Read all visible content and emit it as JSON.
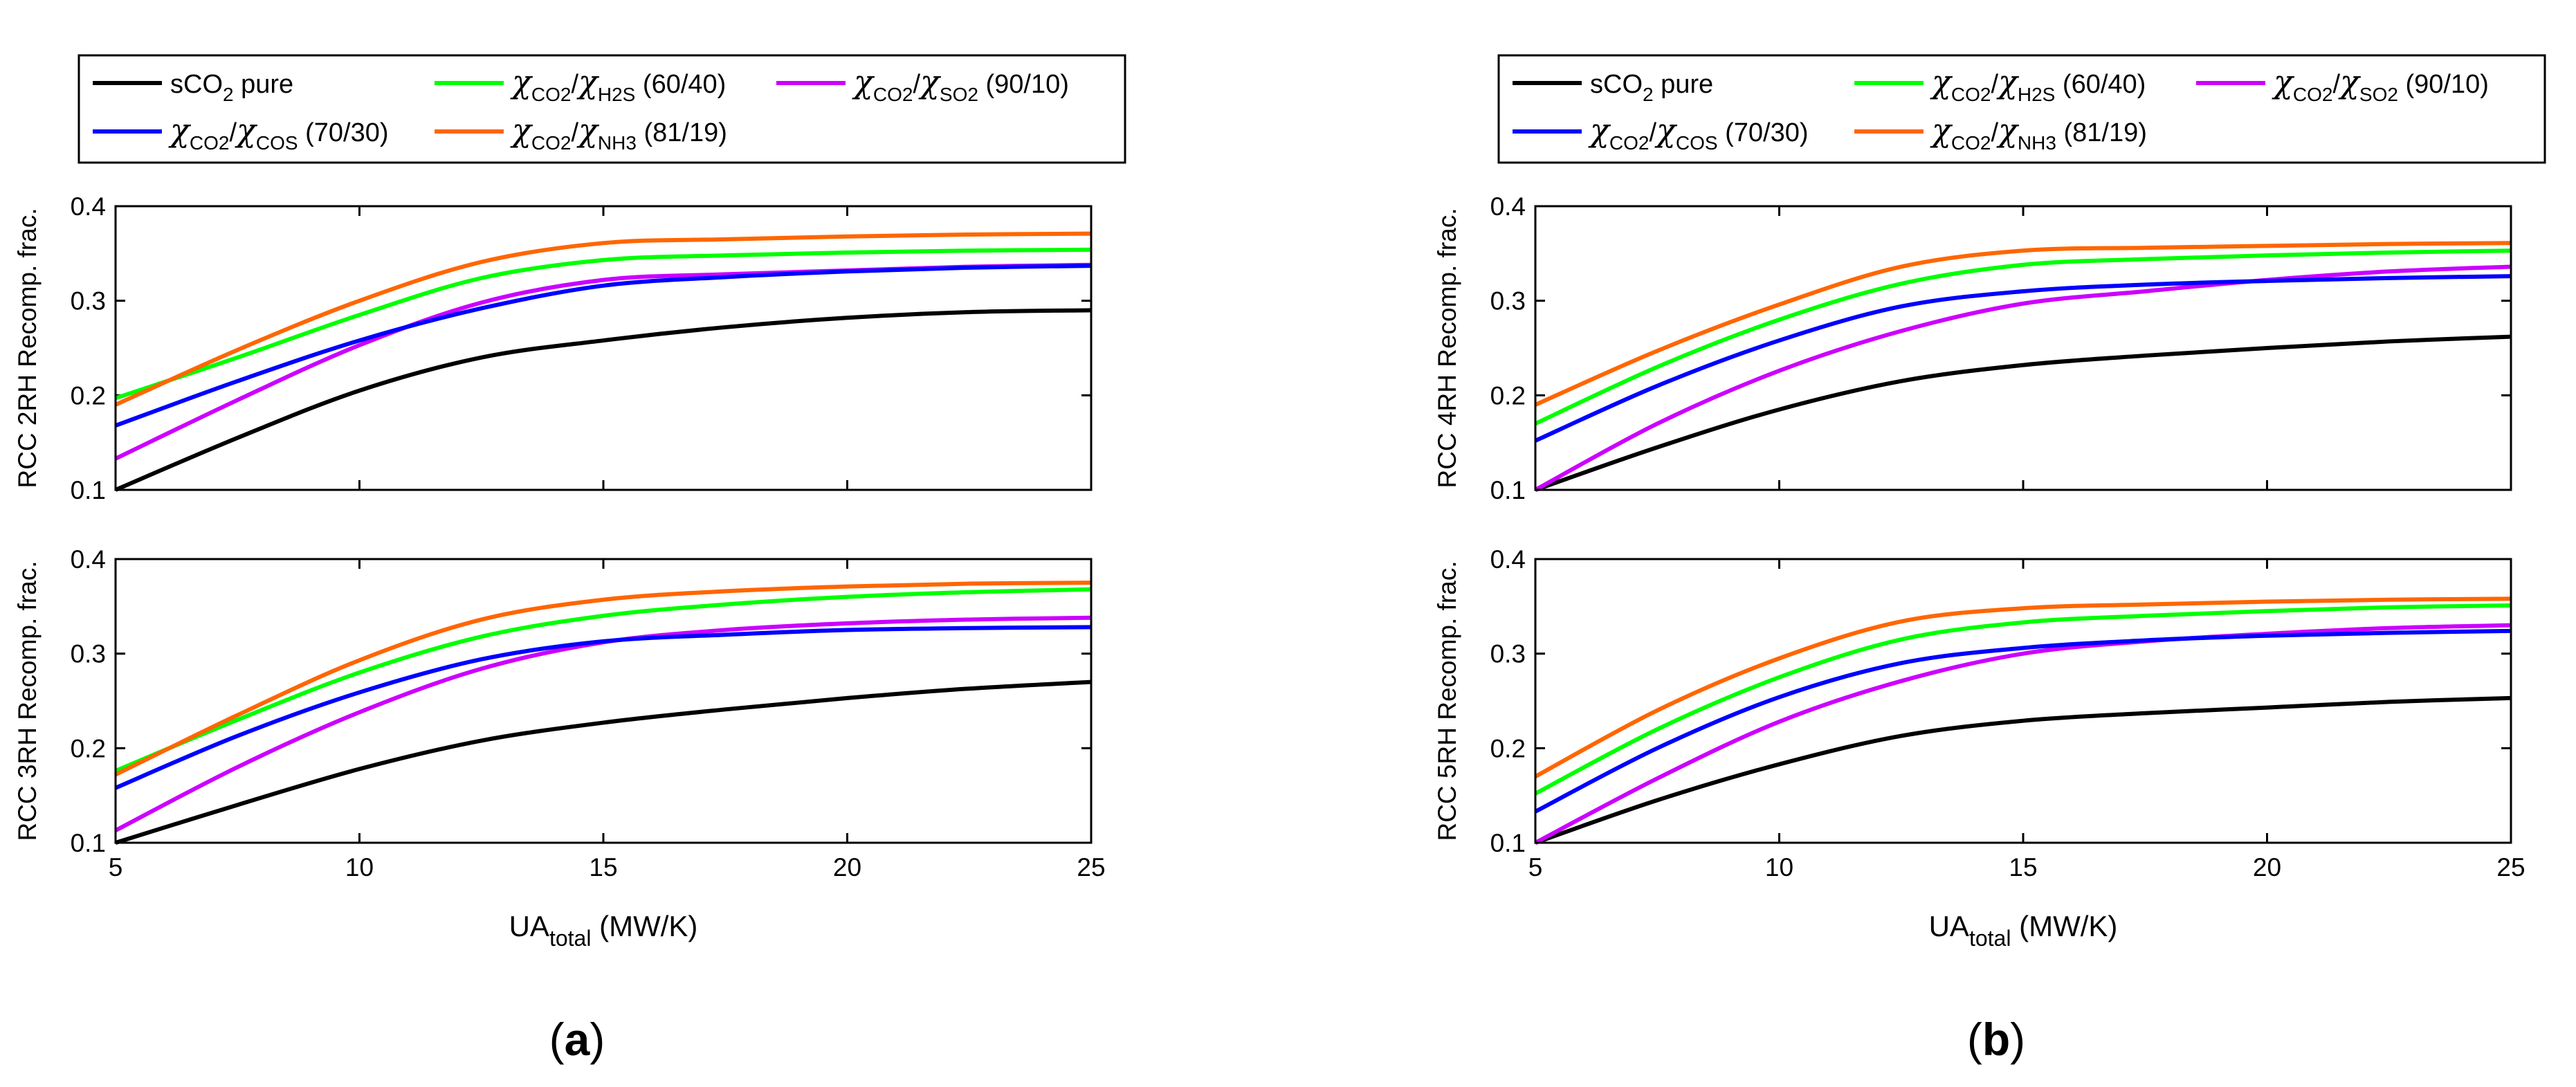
{
  "legend": [
    {
      "main": "sCO",
      "sub": "2",
      "tail": " pure",
      "color": "#000000",
      "kind": "plain"
    },
    {
      "chi": "χ",
      "s1": "CO2",
      "slash": "/",
      "chi2": "χ",
      "s2": "H2S",
      "ratio": " (60/40)",
      "color": "#00ff00",
      "kind": "chi"
    },
    {
      "chi": "χ",
      "s1": "CO2",
      "slash": "/",
      "chi2": "χ",
      "s2": "SO2",
      "ratio": " (90/10)",
      "color": "#cc00ff",
      "kind": "chi"
    },
    {
      "chi": "χ",
      "s1": "CO2",
      "slash": "/",
      "chi2": "χ",
      "s2": "COS",
      "ratio": " (70/30)",
      "color": "#0000ff",
      "kind": "chi"
    },
    {
      "chi": "χ",
      "s1": "CO2",
      "slash": "/",
      "chi2": "χ",
      "s2": "NH3",
      "ratio": " (81/19)",
      "color": "#ff6600",
      "kind": "chi"
    }
  ],
  "xlabel": {
    "main": "UA",
    "sub": "total",
    "tail": " (MW/K)"
  },
  "captions": [
    "(",
    "a",
    ")",
    "b"
  ],
  "chart_data": [
    {
      "type": "line",
      "panel": "a",
      "title": "",
      "ylabel": "RCC 2RH Recomp. frac.",
      "xlim": [
        5,
        25
      ],
      "ylim": [
        0.1,
        0.4
      ],
      "xticks": [
        "5",
        "10",
        "15",
        "20",
        "25"
      ],
      "yticks": [
        "0.1",
        "0.2",
        "0.3",
        "0.4"
      ],
      "x": [
        5,
        7.5,
        10,
        12.5,
        15,
        17.5,
        20,
        22.5,
        25
      ],
      "series": [
        {
          "name": "sCO2 pure",
          "color": "#000000",
          "values": [
            0.1,
            0.155,
            0.205,
            0.24,
            0.258,
            0.272,
            0.282,
            0.288,
            0.29
          ]
        },
        {
          "name": "χCO2/χH2S (60/40)",
          "color": "#00ff00",
          "values": [
            0.197,
            0.24,
            0.285,
            0.324,
            0.343,
            0.348,
            0.351,
            0.353,
            0.354
          ]
        },
        {
          "name": "χCO2/χSO2 (90/10)",
          "color": "#cc00ff",
          "values": [
            0.133,
            0.195,
            0.253,
            0.298,
            0.322,
            0.328,
            0.332,
            0.336,
            0.338
          ]
        },
        {
          "name": "χCO2/χCOS (70/30)",
          "color": "#0000ff",
          "values": [
            0.168,
            0.215,
            0.258,
            0.292,
            0.316,
            0.325,
            0.331,
            0.335,
            0.337
          ]
        },
        {
          "name": "χCO2/χNH3 (81/19)",
          "color": "#ff6600",
          "values": [
            0.19,
            0.248,
            0.3,
            0.341,
            0.361,
            0.365,
            0.368,
            0.37,
            0.371
          ]
        }
      ]
    },
    {
      "type": "line",
      "panel": "a",
      "title": "",
      "ylabel": "RCC 3RH Recomp. frac.",
      "xlim": [
        5,
        25
      ],
      "ylim": [
        0.1,
        0.4
      ],
      "xticks": [
        "5",
        "10",
        "15",
        "20",
        "25"
      ],
      "yticks": [
        "0.1",
        "0.2",
        "0.3",
        "0.4"
      ],
      "x": [
        5,
        7.5,
        10,
        12.5,
        15,
        17.5,
        20,
        22.5,
        25
      ],
      "series": [
        {
          "name": "sCO2 pure",
          "color": "#000000",
          "values": [
            0.1,
            0.14,
            0.178,
            0.208,
            0.227,
            0.241,
            0.253,
            0.263,
            0.27
          ]
        },
        {
          "name": "χCO2/χH2S (60/40)",
          "color": "#00ff00",
          "values": [
            0.176,
            0.23,
            0.28,
            0.318,
            0.34,
            0.352,
            0.36,
            0.365,
            0.368
          ]
        },
        {
          "name": "χCO2/χSO2 (90/10)",
          "color": "#cc00ff",
          "values": [
            0.113,
            0.18,
            0.238,
            0.284,
            0.312,
            0.325,
            0.332,
            0.336,
            0.338
          ]
        },
        {
          "name": "χCO2/χCOS (70/30)",
          "color": "#0000ff",
          "values": [
            0.158,
            0.213,
            0.259,
            0.294,
            0.313,
            0.32,
            0.325,
            0.327,
            0.328
          ]
        },
        {
          "name": "χCO2/χNH3 (81/19)",
          "color": "#ff6600",
          "values": [
            0.172,
            0.235,
            0.293,
            0.336,
            0.357,
            0.366,
            0.371,
            0.374,
            0.375
          ]
        }
      ]
    },
    {
      "type": "line",
      "panel": "b",
      "title": "",
      "ylabel": "RCC 4RH Recomp. frac.",
      "xlim": [
        5,
        25
      ],
      "ylim": [
        0.1,
        0.4
      ],
      "xticks": [
        "5",
        "10",
        "15",
        "20",
        "25"
      ],
      "yticks": [
        "0.1",
        "0.2",
        "0.3",
        "0.4"
      ],
      "x": [
        5,
        7.5,
        10,
        12.5,
        15,
        17.5,
        20,
        22.5,
        25
      ],
      "series": [
        {
          "name": "sCO2 pure",
          "color": "#000000",
          "values": [
            0.1,
            0.145,
            0.185,
            0.215,
            0.232,
            0.242,
            0.25,
            0.257,
            0.262
          ]
        },
        {
          "name": "χCO2/χH2S (60/40)",
          "color": "#00ff00",
          "values": [
            0.17,
            0.23,
            0.28,
            0.318,
            0.338,
            0.344,
            0.348,
            0.351,
            0.353
          ]
        },
        {
          "name": "χCO2/χSO2 (90/10)",
          "color": "#cc00ff",
          "values": [
            0.1,
            0.17,
            0.226,
            0.268,
            0.297,
            0.31,
            0.322,
            0.331,
            0.336
          ]
        },
        {
          "name": "χCO2/χCOS (70/30)",
          "color": "#0000ff",
          "values": [
            0.152,
            0.21,
            0.258,
            0.294,
            0.31,
            0.317,
            0.321,
            0.324,
            0.326
          ]
        },
        {
          "name": "χCO2/χNH3 (81/19)",
          "color": "#ff6600",
          "values": [
            0.19,
            0.247,
            0.296,
            0.336,
            0.353,
            0.356,
            0.358,
            0.36,
            0.361
          ]
        }
      ]
    },
    {
      "type": "line",
      "panel": "b",
      "title": "",
      "ylabel": "RCC 5RH Recomp. frac.",
      "xlim": [
        5,
        25
      ],
      "ylim": [
        0.1,
        0.4
      ],
      "xticks": [
        "5",
        "10",
        "15",
        "20",
        "25"
      ],
      "yticks": [
        "0.1",
        "0.2",
        "0.3",
        "0.4"
      ],
      "x": [
        5,
        7.5,
        10,
        12.5,
        15,
        17.5,
        20,
        22.5,
        25
      ],
      "series": [
        {
          "name": "sCO2 pure",
          "color": "#000000",
          "values": [
            0.1,
            0.145,
            0.183,
            0.213,
            0.229,
            0.237,
            0.243,
            0.249,
            0.253
          ]
        },
        {
          "name": "χCO2/χH2S (60/40)",
          "color": "#00ff00",
          "values": [
            0.152,
            0.22,
            0.275,
            0.315,
            0.333,
            0.34,
            0.345,
            0.349,
            0.351
          ]
        },
        {
          "name": "χCO2/χSO2 (90/10)",
          "color": "#cc00ff",
          "values": [
            0.1,
            0.168,
            0.228,
            0.271,
            0.3,
            0.313,
            0.321,
            0.327,
            0.33
          ]
        },
        {
          "name": "χCO2/χCOS (70/30)",
          "color": "#0000ff",
          "values": [
            0.133,
            0.2,
            0.254,
            0.29,
            0.306,
            0.314,
            0.319,
            0.322,
            0.324
          ]
        },
        {
          "name": "χCO2/χNH3 (81/19)",
          "color": "#ff6600",
          "values": [
            0.17,
            0.24,
            0.295,
            0.334,
            0.348,
            0.352,
            0.355,
            0.357,
            0.358
          ]
        }
      ]
    }
  ]
}
